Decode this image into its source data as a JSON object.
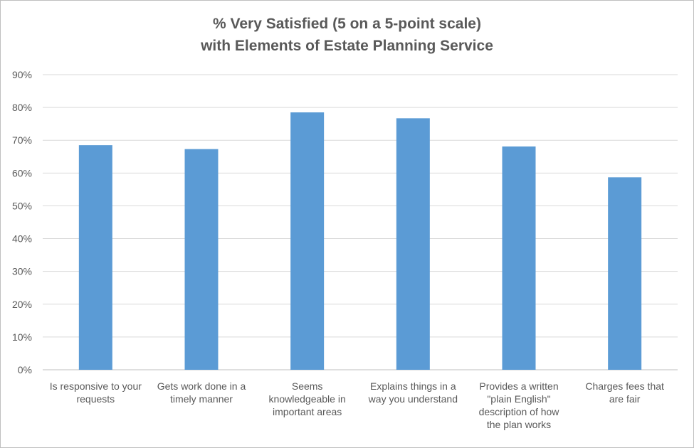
{
  "chart_data": {
    "type": "bar",
    "title": [
      "% Very Satisfied (5 on a 5-point scale)",
      "with Elements of Estate Planning Service"
    ],
    "categories": [
      [
        "Is responsive to your",
        "requests"
      ],
      [
        "Gets work done in a",
        "timely manner"
      ],
      [
        "Seems",
        "knowledgeable in",
        "important areas"
      ],
      [
        "Explains things in a",
        "way you understand"
      ],
      [
        "Provides a written",
        "\"plain English\"",
        "description of how",
        "the plan works"
      ],
      [
        "Charges fees that",
        "are fair"
      ]
    ],
    "values": [
      0.685,
      0.673,
      0.785,
      0.767,
      0.681,
      0.587
    ],
    "ylim": [
      0,
      0.9
    ],
    "yticks": [
      "0%",
      "10%",
      "20%",
      "30%",
      "40%",
      "50%",
      "60%",
      "70%",
      "80%",
      "90%"
    ],
    "grid": true,
    "bar_color": "#5b9bd5",
    "grid_color": "#d9d9d9"
  }
}
